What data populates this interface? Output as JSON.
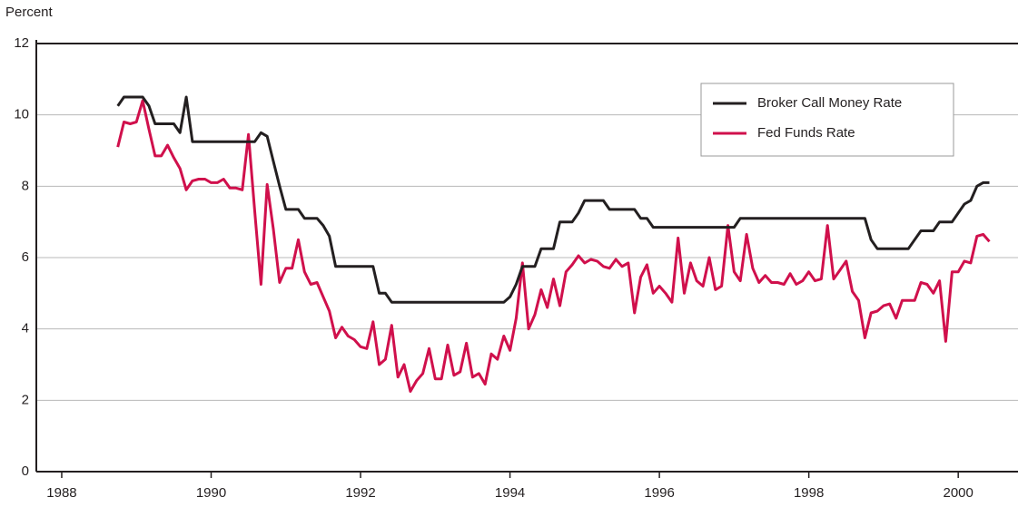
{
  "chart_data": {
    "type": "line",
    "y_label": "Percent",
    "x": [
      1988.75,
      1988.833,
      1988.917,
      1989,
      1989.083,
      1989.167,
      1989.25,
      1989.333,
      1989.417,
      1989.5,
      1989.583,
      1989.667,
      1989.75,
      1989.833,
      1989.917,
      1990,
      1990.083,
      1990.167,
      1990.25,
      1990.333,
      1990.417,
      1990.5,
      1990.583,
      1990.667,
      1990.75,
      1990.833,
      1990.917,
      1991,
      1991.083,
      1991.167,
      1991.25,
      1991.333,
      1991.417,
      1991.5,
      1991.583,
      1991.667,
      1991.75,
      1991.833,
      1991.917,
      1992,
      1992.083,
      1992.167,
      1992.25,
      1992.333,
      1992.417,
      1992.5,
      1992.583,
      1992.667,
      1992.75,
      1992.833,
      1992.917,
      1993,
      1993.083,
      1993.167,
      1993.25,
      1993.333,
      1993.417,
      1993.5,
      1993.583,
      1993.667,
      1993.75,
      1993.833,
      1993.917,
      1994,
      1994.083,
      1994.167,
      1994.25,
      1994.333,
      1994.417,
      1994.5,
      1994.583,
      1994.667,
      1994.75,
      1994.833,
      1994.917,
      1995,
      1995.083,
      1995.167,
      1995.25,
      1995.333,
      1995.417,
      1995.5,
      1995.583,
      1995.667,
      1995.75,
      1995.833,
      1995.917,
      1996,
      1996.083,
      1996.167,
      1996.25,
      1996.333,
      1996.417,
      1996.5,
      1996.583,
      1996.667,
      1996.75,
      1996.833,
      1996.917,
      1997,
      1997.083,
      1997.167,
      1997.25,
      1997.333,
      1997.417,
      1997.5,
      1997.583,
      1997.667,
      1997.75,
      1997.833,
      1997.917,
      1998,
      1998.083,
      1998.167,
      1998.25,
      1998.333,
      1998.417,
      1998.5,
      1998.583,
      1998.667,
      1998.75,
      1998.833,
      1998.917,
      1999,
      1999.083,
      1999.167,
      1999.25,
      1999.333,
      1999.417,
      1999.5,
      1999.583,
      1999.667,
      1999.75,
      1999.833,
      1999.917,
      2000,
      2000.083,
      2000.167,
      2000.25,
      2000.333,
      2000.417
    ],
    "series": [
      {
        "name": "Broker Call Money Rate",
        "color": "#231f20",
        "values": [
          10.25,
          10.5,
          10.5,
          10.5,
          10.5,
          10.25,
          9.75,
          9.75,
          9.75,
          9.75,
          9.5,
          10.5,
          9.25,
          9.25,
          9.25,
          9.25,
          9.25,
          9.25,
          9.25,
          9.25,
          9.25,
          9.25,
          9.25,
          9.5,
          9.4,
          8.7,
          8.0,
          7.35,
          7.35,
          7.35,
          7.1,
          7.1,
          7.1,
          6.9,
          6.6,
          5.75,
          5.75,
          5.75,
          5.75,
          5.75,
          5.75,
          5.75,
          5.0,
          5.0,
          4.75,
          4.75,
          4.75,
          4.75,
          4.75,
          4.75,
          4.75,
          4.75,
          4.75,
          4.75,
          4.75,
          4.75,
          4.75,
          4.75,
          4.75,
          4.75,
          4.75,
          4.75,
          4.75,
          4.9,
          5.25,
          5.75,
          5.75,
          5.75,
          6.25,
          6.25,
          6.25,
          7.0,
          7.0,
          7.0,
          7.25,
          7.6,
          7.6,
          7.6,
          7.6,
          7.35,
          7.35,
          7.35,
          7.35,
          7.35,
          7.1,
          7.1,
          6.85,
          6.85,
          6.85,
          6.85,
          6.85,
          6.85,
          6.85,
          6.85,
          6.85,
          6.85,
          6.85,
          6.85,
          6.85,
          6.85,
          7.1,
          7.1,
          7.1,
          7.1,
          7.1,
          7.1,
          7.1,
          7.1,
          7.1,
          7.1,
          7.1,
          7.1,
          7.1,
          7.1,
          7.1,
          7.1,
          7.1,
          7.1,
          7.1,
          7.1,
          7.1,
          6.5,
          6.25,
          6.25,
          6.25,
          6.25,
          6.25,
          6.25,
          6.5,
          6.75,
          6.75,
          6.75,
          7.0,
          7.0,
          7.0,
          7.25,
          7.5,
          7.6,
          8.0,
          8.1,
          8.1
        ]
      },
      {
        "name": "Fed Funds Rate",
        "color": "#d0104c",
        "values": [
          9.1,
          9.8,
          9.75,
          9.8,
          10.4,
          9.6,
          8.85,
          8.85,
          9.15,
          8.8,
          8.5,
          7.9,
          8.15,
          8.2,
          8.2,
          8.1,
          8.1,
          8.2,
          7.95,
          7.95,
          7.9,
          9.45,
          7.3,
          5.25,
          8.05,
          6.8,
          5.3,
          5.7,
          5.7,
          6.5,
          5.6,
          5.25,
          5.3,
          4.9,
          4.5,
          3.75,
          4.05,
          3.8,
          3.7,
          3.5,
          3.45,
          4.2,
          3.0,
          3.15,
          4.1,
          2.65,
          3.0,
          2.25,
          2.55,
          2.75,
          3.45,
          2.6,
          2.6,
          3.55,
          2.7,
          2.8,
          3.6,
          2.65,
          2.75,
          2.45,
          3.3,
          3.15,
          3.8,
          3.4,
          4.3,
          5.85,
          4.0,
          4.4,
          5.1,
          4.6,
          5.4,
          4.65,
          5.6,
          5.8,
          6.05,
          5.85,
          5.95,
          5.9,
          5.75,
          5.7,
          5.95,
          5.75,
          5.85,
          4.45,
          5.45,
          5.8,
          5.0,
          5.2,
          5.0,
          4.75,
          6.55,
          5.0,
          5.85,
          5.35,
          5.2,
          6.0,
          5.1,
          5.2,
          6.9,
          5.6,
          5.35,
          6.65,
          5.7,
          5.3,
          5.5,
          5.3,
          5.3,
          5.25,
          5.55,
          5.25,
          5.35,
          5.6,
          5.35,
          5.4,
          6.9,
          5.4,
          5.65,
          5.9,
          5.05,
          4.8,
          3.75,
          4.45,
          4.5,
          4.65,
          4.7,
          4.3,
          4.8,
          4.8,
          4.8,
          5.3,
          5.25,
          5.0,
          5.35,
          3.65,
          5.6,
          5.6,
          5.9,
          5.85,
          6.6,
          6.65,
          6.45
        ]
      }
    ],
    "xlim": [
      1987.66,
      2000.8
    ],
    "xticks": [
      1988,
      1990,
      1992,
      1994,
      1996,
      1998,
      2000
    ],
    "ylim": [
      0,
      12
    ],
    "yticks": [
      0,
      2,
      4,
      6,
      8,
      10,
      12
    ],
    "grid": true,
    "legend": "upper right"
  }
}
